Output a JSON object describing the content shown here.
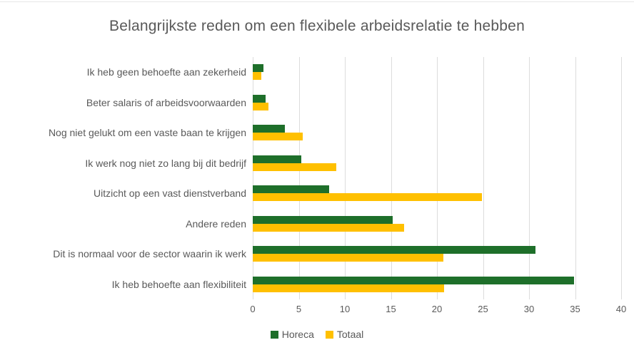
{
  "title": "Belangrijkste reden om een flexibele arbeidsrelatie te hebben",
  "colors": {
    "horeca": "#1e6f2a",
    "totaal": "#ffc000",
    "text": "#595959",
    "gridline": "#dcdcdc"
  },
  "chart_data": {
    "type": "bar",
    "orientation": "horizontal",
    "title": "Belangrijkste reden om een flexibele arbeidsrelatie te hebben",
    "categories": [
      "Ik heb geen behoefte aan zekerheid",
      "Beter salaris of arbeidsvoorwaarden",
      "Nog niet gelukt om een vaste baan te krijgen",
      "Ik werk nog niet zo lang bij dit bedrijf",
      "Uitzicht op een vast dienstverband",
      "Andere reden",
      "Dit is normaal voor de sector waarin ik werk",
      "Ik heb behoefte aan flexibiliteit"
    ],
    "series": [
      {
        "name": "Horeca",
        "color": "#1e6f2a",
        "values": [
          1.2,
          1.4,
          3.5,
          5.3,
          8.3,
          15.2,
          30.7,
          34.9
        ]
      },
      {
        "name": "Totaal",
        "color": "#ffc000",
        "values": [
          0.9,
          1.7,
          5.4,
          9.1,
          24.9,
          16.4,
          20.7,
          20.8
        ]
      }
    ],
    "xlim": [
      0,
      40
    ],
    "xticks": [
      0,
      5,
      10,
      15,
      20,
      25,
      30,
      35,
      40
    ],
    "xlabel": "",
    "ylabel": "",
    "grid": true,
    "legend_position": "bottom-center"
  }
}
